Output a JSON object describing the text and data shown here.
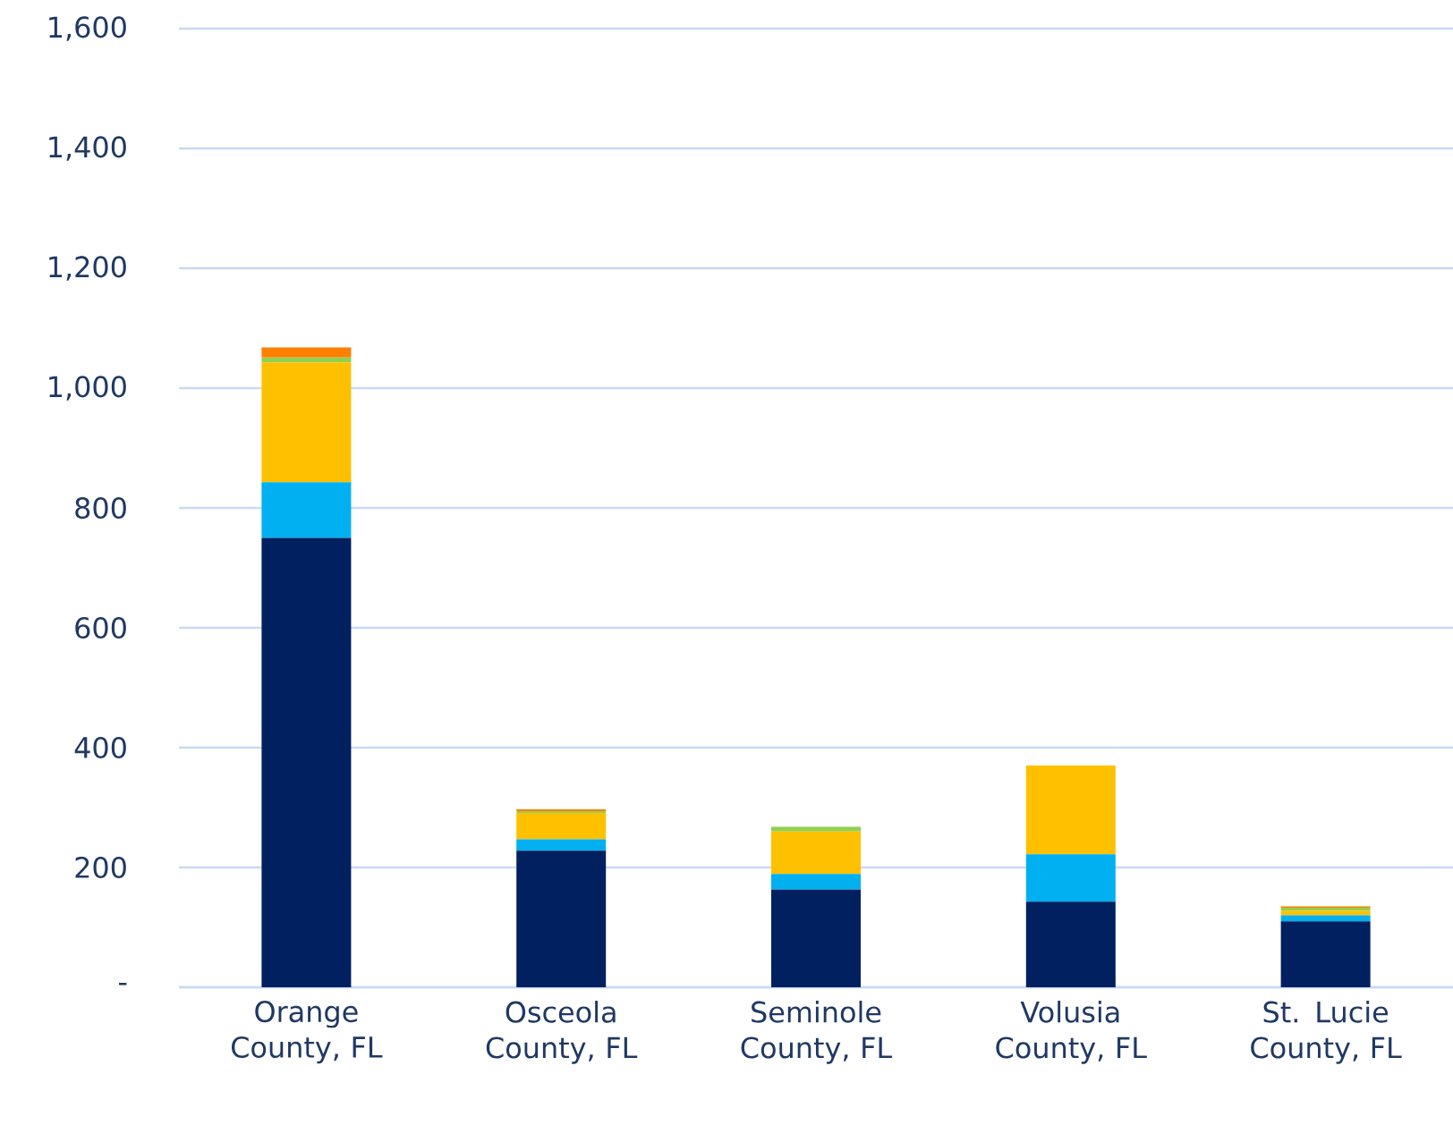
{
  "chart_data": {
    "type": "bar",
    "stacked": true,
    "categories": [
      "Orange County, FL",
      "Osceola County, FL",
      "Seminole County, FL",
      "Volusia County, FL",
      "St. Lucie County, FL"
    ],
    "series": [
      {
        "color": "#002060",
        "values": [
          750,
          228,
          163,
          143,
          110
        ]
      },
      {
        "color": "#00b0f0",
        "values": [
          93,
          19,
          26,
          79,
          10
        ]
      },
      {
        "color": "#ffc000",
        "values": [
          200,
          44,
          71,
          148,
          8
        ]
      },
      {
        "color": "#92d050",
        "values": [
          8,
          3,
          8,
          null,
          5
        ]
      },
      {
        "color": "#ff7f00",
        "values": [
          17,
          3,
          null,
          null,
          2
        ]
      }
    ],
    "ylim": [
      0,
      1600
    ],
    "yticks": [
      {
        "value": 0,
        "label": "-"
      },
      200,
      400,
      600,
      800,
      {
        "value": 1000,
        "label": "1,000"
      },
      {
        "value": 1200,
        "label": "1,200"
      },
      {
        "value": 1400,
        "label": "1,400"
      },
      {
        "value": 1600,
        "label": "1,600"
      }
    ],
    "grid": "y"
  }
}
